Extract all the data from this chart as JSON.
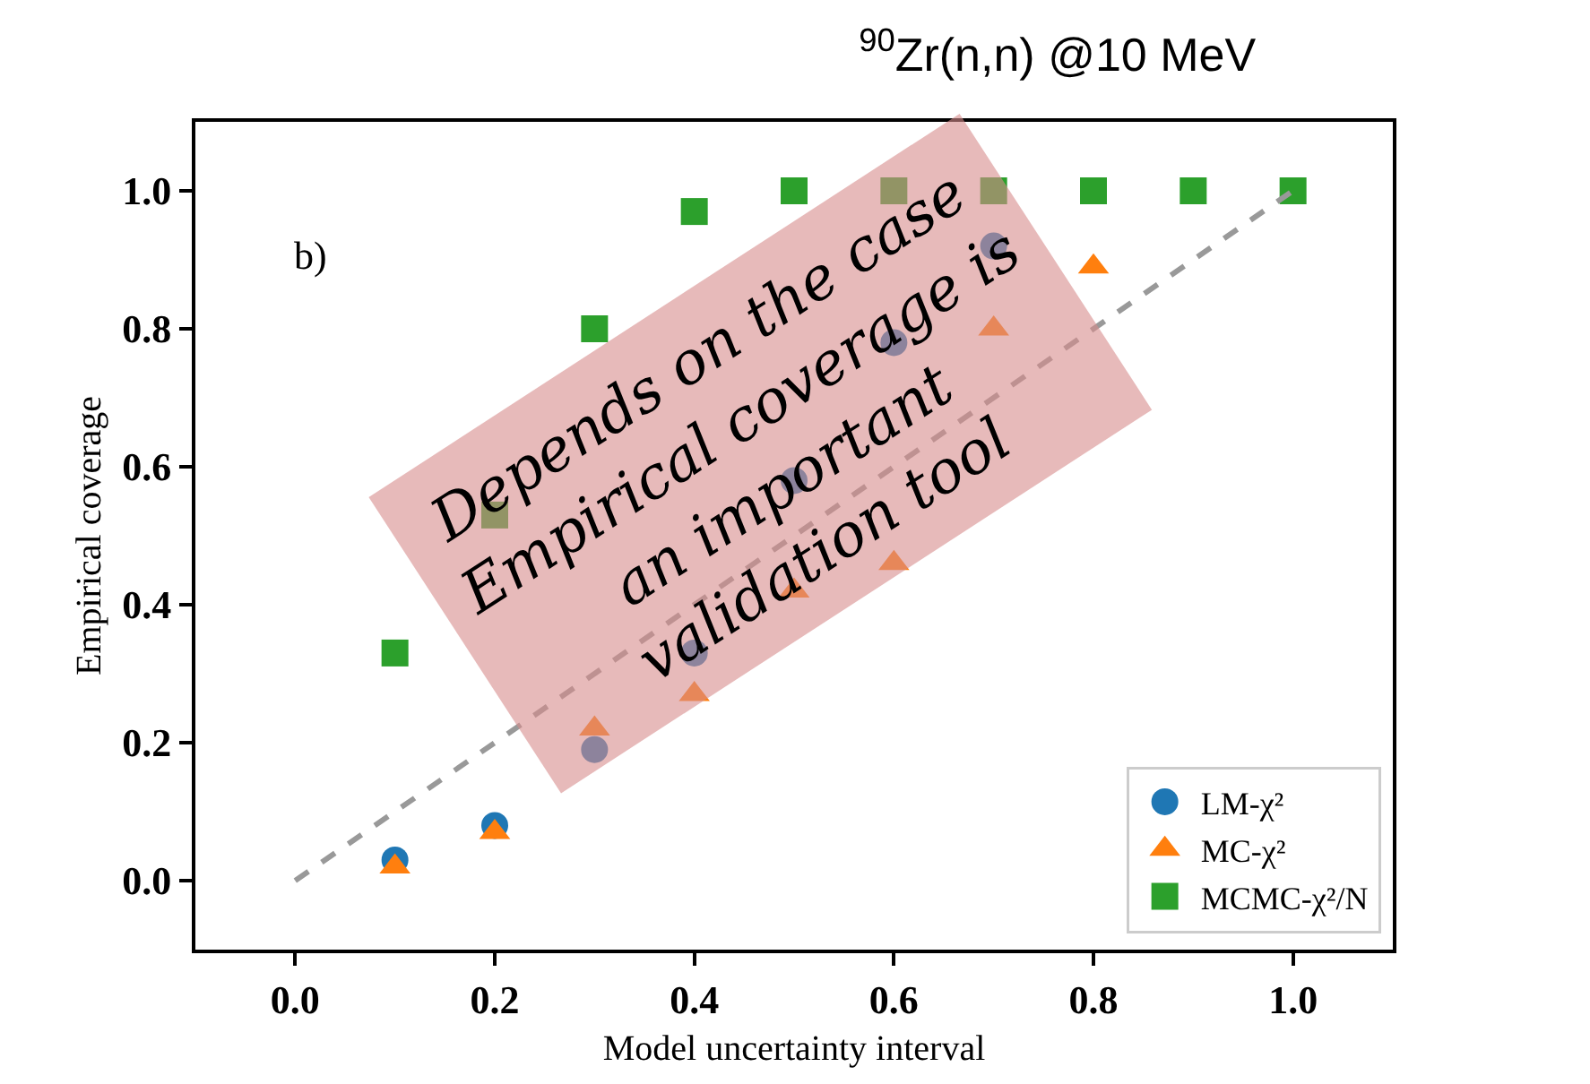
{
  "chart_data": {
    "type": "scatter",
    "title": "$^{90}$Zr(n,n) @10 MeV",
    "xlabel": "Model uncertainty interval",
    "ylabel": "Empirical coverage",
    "x": [
      0.1,
      0.2,
      0.3,
      0.4,
      0.5,
      0.6,
      0.7,
      0.8,
      0.9,
      1.0
    ],
    "series": [
      {
        "name": "LM-χ²",
        "color": "#1f77b4",
        "marker": "circle",
        "values": [
          0.03,
          0.08,
          0.19,
          0.33,
          0.58,
          0.78,
          0.92,
          null,
          null,
          null
        ]
      },
      {
        "name": "MC-χ²",
        "color": "#ff7f0e",
        "marker": "triangle",
        "values": [
          0.02,
          0.07,
          0.22,
          0.27,
          0.42,
          0.46,
          0.8,
          0.89,
          null,
          null
        ]
      },
      {
        "name": "MCMC-χ²/N",
        "color": "#2ca02c",
        "marker": "square",
        "values": [
          0.33,
          0.53,
          0.8,
          0.97,
          1.0,
          1.0,
          1.0,
          1.0,
          1.0,
          1.0
        ]
      },
      {
        "type": "line",
        "x": [
          0.0,
          1.0
        ],
        "values": [
          0.0,
          1.0
        ],
        "color": "#999999",
        "line_style": "dashed",
        "marker": "none"
      }
    ],
    "annotations": [
      "b)",
      "Depends on the case\nEmpirical coverage is\nan important\nvalidation tool"
    ],
    "xlim": [
      -0.1,
      1.1
    ],
    "ylim": [
      -0.1,
      1.1
    ],
    "xticks": [
      {
        "value": 0.0,
        "label": "0.0"
      },
      0.2,
      0.4,
      0.6,
      0.8,
      {
        "value": 1.0,
        "label": "1.0"
      }
    ],
    "yticks": [
      {
        "value": 0.0,
        "label": "0.0"
      },
      0.2,
      0.4,
      0.6,
      0.8,
      {
        "value": 1.0,
        "label": "1.0"
      }
    ],
    "legend": "bottom right"
  }
}
